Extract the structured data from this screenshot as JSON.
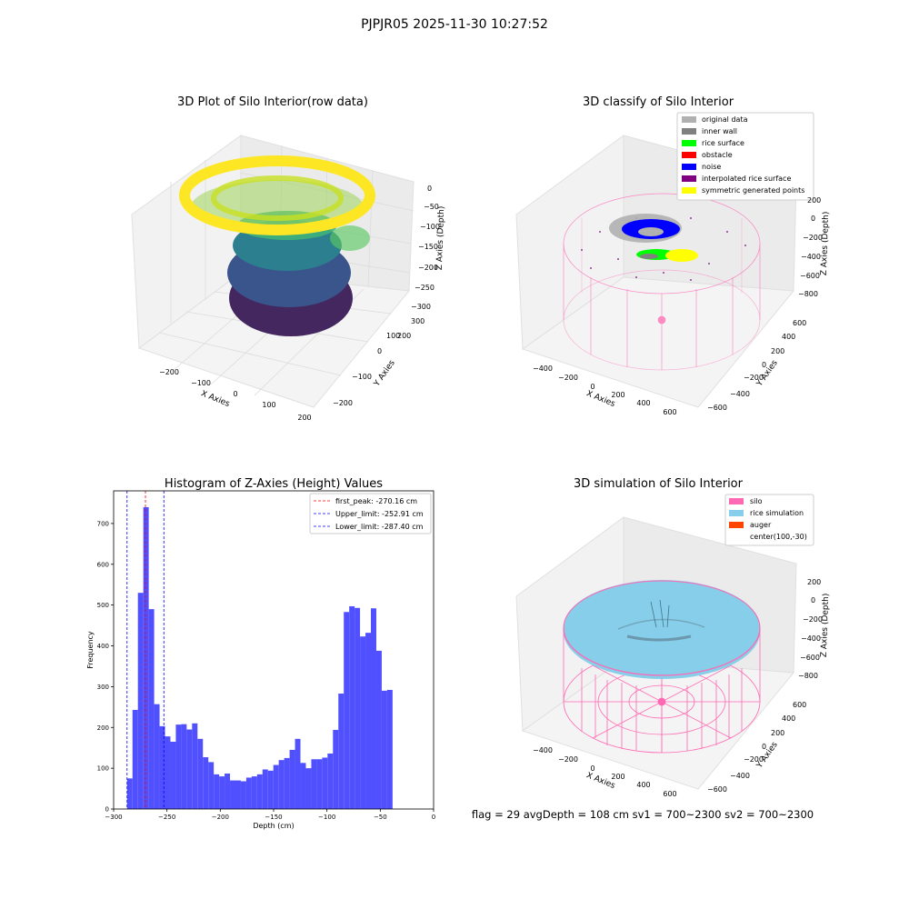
{
  "suptitle": "PJPJR05 2025-11-30 10:27:52",
  "footer_text": "flag = 29  avgDepth = 108 cm  sv1 = 700~2300  sv2 = 700~2300",
  "chart_data": [
    {
      "type": "scatter",
      "projection": "3d",
      "title": "3D Plot of Silo Interior(row data)",
      "xlabel": "X Axies",
      "ylabel": "Y Axies",
      "zlabel": "Z Axies (Depth)",
      "x_ticks": [
        "−200",
        "−100",
        "0",
        "100",
        "200"
      ],
      "y_ticks": [
        "−200",
        "−100",
        "0",
        "100",
        "200",
        "300"
      ],
      "z_ticks": [
        "0",
        "−50",
        "−100",
        "−150",
        "−200",
        "−250",
        "−300"
      ],
      "colormap": "viridis",
      "colors": {
        "low": "#440154",
        "mid": "#21918c",
        "high": "#fde725"
      }
    },
    {
      "type": "scatter",
      "projection": "3d",
      "title": "3D classify of Silo Interior",
      "xlabel": "X Axies",
      "ylabel": "Y Axies",
      "zlabel": "Z Axies (Depth)",
      "x_ticks": [
        "−400",
        "−200",
        "0",
        "200",
        "400",
        "600"
      ],
      "y_ticks": [
        "−600",
        "−400",
        "−200",
        "0",
        "200",
        "400",
        "600"
      ],
      "z_ticks": [
        "200",
        "0",
        "−200",
        "−400",
        "−600",
        "−800"
      ],
      "legend_position": "top-right",
      "legend": [
        {
          "name": "original data",
          "color": "#b0b0b0"
        },
        {
          "name": "inner wall",
          "color": "#808080"
        },
        {
          "name": "rice surface",
          "color": "#00ff00"
        },
        {
          "name": "obstacle",
          "color": "#ff0000"
        },
        {
          "name": "noise",
          "color": "#0000ff"
        },
        {
          "name": "interpolated rice surface",
          "color": "#800080"
        },
        {
          "name": "symmetric generated points",
          "color": "#ffff00"
        }
      ],
      "wireframe_color": "#ff69b4"
    },
    {
      "type": "bar",
      "title": "Histogram of Z-Axies (Height) Values",
      "xlabel": "Depth (cm)",
      "ylabel": "Frequency",
      "xlim": [
        -300,
        0
      ],
      "ylim": [
        0,
        780
      ],
      "x_ticks": [
        -300,
        -250,
        -200,
        -150,
        -100,
        -50,
        0
      ],
      "y_ticks": [
        0,
        100,
        200,
        300,
        400,
        500,
        600,
        700
      ],
      "bar_color": "#5050ff",
      "bins_start": -287.4,
      "bin_width": 5.08,
      "values": [
        75,
        243,
        530,
        740,
        490,
        257,
        203,
        178,
        165,
        207,
        208,
        195,
        210,
        172,
        127,
        115,
        85,
        80,
        87,
        70,
        70,
        68,
        77,
        80,
        85,
        97,
        94,
        108,
        120,
        125,
        145,
        172,
        113,
        100,
        122,
        122,
        126,
        136,
        194,
        283,
        483,
        497,
        493,
        423,
        432,
        492,
        388,
        290,
        292
      ],
      "vlines": [
        {
          "label": "first_peak: -270.16 cm",
          "x": -270.16,
          "color": "#ff0000"
        },
        {
          "label": "Upper_limit: -252.91 cm",
          "x": -252.91,
          "color": "#0000ff"
        },
        {
          "label": "Lower_limit: -287.40 cm",
          "x": -287.4,
          "color": "#0000ff"
        }
      ],
      "legend_position": "top-right"
    },
    {
      "type": "surface",
      "projection": "3d",
      "title": "3D simulation of Silo Interior",
      "xlabel": "X Axies",
      "ylabel": "Y Axies",
      "zlabel": "Z Axies (Depth)",
      "x_ticks": [
        "−400",
        "−200",
        "0",
        "200",
        "400",
        "600"
      ],
      "y_ticks": [
        "−600",
        "−400",
        "−200",
        "0",
        "200",
        "400",
        "600"
      ],
      "z_ticks": [
        "200",
        "0",
        "−200",
        "−400",
        "−600",
        "−800"
      ],
      "legend_position": "top-right",
      "legend": [
        {
          "name": "silo",
          "color": "#ff69b4"
        },
        {
          "name": "rice simulation",
          "color": "#87ceeb"
        },
        {
          "name": "auger",
          "color": "#ff4500"
        },
        {
          "name": "center(100,-30)",
          "color": ""
        }
      ]
    }
  ]
}
